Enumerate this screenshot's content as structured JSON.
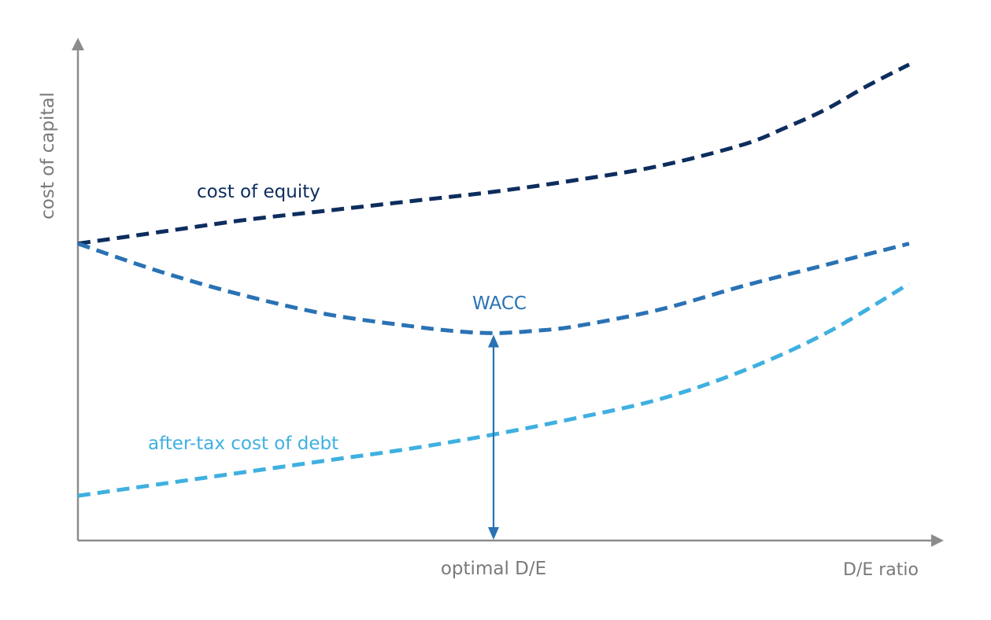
{
  "chart_data": {
    "type": "line",
    "xlabel": "D/E ratio",
    "ylabel": "cost of capital",
    "optimal_label": "optimal D/E",
    "xlim": [
      0,
      100
    ],
    "ylim": [
      0,
      100
    ],
    "grid": false,
    "legend": "none (series labeled inline)",
    "optimal_x": 50,
    "series": [
      {
        "name": "cost of equity",
        "color": "#0d2d5e",
        "dash": "dashed",
        "x": [
          0,
          10,
          20,
          30,
          40,
          50,
          60,
          70,
          80,
          85,
          90,
          95,
          100
        ],
        "y": [
          63,
          65.5,
          68,
          70,
          72,
          74,
          76.5,
          79.5,
          84,
          87.5,
          91.5,
          96.5,
          101
        ]
      },
      {
        "name": "WACC",
        "color": "#2a72b4",
        "dash": "dashed",
        "x": [
          0,
          10,
          20,
          30,
          40,
          45,
          50,
          55,
          60,
          70,
          80,
          90,
          100
        ],
        "y": [
          63,
          57,
          52,
          48,
          45.5,
          44.5,
          44,
          44.5,
          45.5,
          49,
          54,
          58.5,
          63
        ]
      },
      {
        "name": "after-tax cost of debt",
        "color": "#3fb0e0",
        "dash": "dashed",
        "x": [
          0,
          10,
          20,
          30,
          40,
          50,
          60,
          70,
          80,
          90,
          100
        ],
        "y": [
          9.5,
          12,
          14.5,
          17,
          19.5,
          22.5,
          26,
          30,
          36,
          44,
          54.5
        ]
      }
    ],
    "arrow_color": "#2a72b4"
  },
  "colors": {
    "axis": "#8c8c8c",
    "axis_text": "#7a7a7a"
  }
}
